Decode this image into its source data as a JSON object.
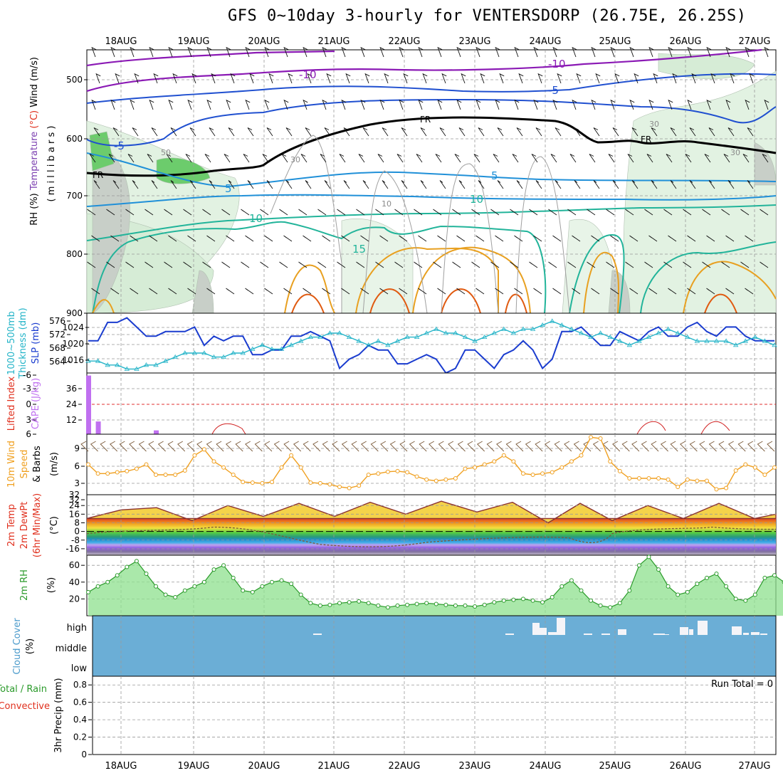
{
  "title": "GFS 0~10day 3-hourly for VENTERSDORP (26.75E, 26.25S)",
  "dates": [
    "18AUG",
    "19AUG",
    "20AUG",
    "21AUG",
    "22AUG",
    "23AUG",
    "24AUG",
    "25AUG",
    "26AUG",
    "27AUG"
  ],
  "panels": {
    "upper_air": {
      "label_parts": [
        {
          "text": "RH (%)",
          "color": "#000000"
        },
        {
          "text": "Temperature",
          "color": "#7b3fb0"
        },
        {
          "text": "(°C)",
          "color": "#e0301e"
        },
        {
          "text": "Wind (m/s)",
          "color": "#000000"
        }
      ],
      "sub_label": "( m i l l i b a r s )",
      "pressure_ticks": [
        "500",
        "600",
        "700",
        "800",
        "900"
      ],
      "contour_labels": [
        {
          "text": "-10",
          "color": "#8b1ab5"
        },
        {
          "text": "-10",
          "color": "#8b1ab5"
        },
        {
          "text": "-5",
          "color": "#2050d0"
        },
        {
          "text": "-5",
          "color": "#2050d0"
        },
        {
          "text": "FR",
          "color": "#000000"
        },
        {
          "text": "FR",
          "color": "#000000"
        },
        {
          "text": "FR",
          "color": "#000000"
        },
        {
          "text": "5",
          "color": "#2090d8"
        },
        {
          "text": "5",
          "color": "#2090d8"
        },
        {
          "text": "10",
          "color": "#22b49a"
        },
        {
          "text": "10",
          "color": "#22b49a"
        },
        {
          "text": "15",
          "color": "#22b49a"
        }
      ],
      "rh_labels": [
        "30",
        "50",
        "10",
        "30",
        "30"
      ]
    },
    "thickness": {
      "label_left": "1000~500mb",
      "label_left2": "Thickness (dm)",
      "label_right": "SLP (mb)",
      "left_ticks": [
        "576",
        "572",
        "568",
        "564"
      ],
      "right_ticks": [
        "1024",
        "1020",
        "1016"
      ]
    },
    "cape": {
      "label1": "Lifted Index",
      "label2": "CAPE (J/kg)",
      "li_ticks": [
        "-6",
        "-3",
        "0",
        "3",
        "6"
      ],
      "cape_ticks": [
        "36",
        "24",
        "12"
      ]
    },
    "wind10m": {
      "label1": "10m Wind",
      "label2": "Speed",
      "label3": "& Barbs",
      "unit": "(m/s)",
      "ticks": [
        "9",
        "6",
        "3"
      ]
    },
    "temp2m": {
      "label1": "2m Temp",
      "label2": "2m DewPt",
      "label3": "(6hr Min/Max)",
      "unit": "(°C)",
      "ticks": [
        "32",
        "24",
        "16",
        "8",
        "0",
        "-8",
        "-16"
      ]
    },
    "rh2m": {
      "label": "2m RH",
      "unit": "(%)",
      "ticks": [
        "60",
        "40",
        "20"
      ]
    },
    "cloud": {
      "label": "Cloud Cover",
      "unit": "(%)",
      "levels": [
        "high",
        "middle",
        "low"
      ]
    },
    "precip": {
      "label_total": "Total / Rain",
      "label_conv": "Convective",
      "label_unit": "3hr Precip (mm)",
      "ticks": [
        "0.8",
        "0.6",
        "0.4",
        "0.2",
        "0"
      ],
      "run_total": "Run Total = 0"
    }
  },
  "colors": {
    "slp": "#1a3ccf",
    "thickness": "#24b4c8",
    "wind_speed": "#f0a020",
    "rh_line": "#2a9a2a",
    "rh_fill": "#8ee08e",
    "cloud_bg": "#6baed6",
    "cape_bar": "#c070f0",
    "li_line": "#d02020"
  },
  "chart_data": [
    {
      "type": "line",
      "title": "SLP (mb)",
      "series": [
        {
          "name": "SLP (mb)",
          "values": [
            1020,
            1020,
            1024,
            1024,
            1025,
            1023,
            1021,
            1021,
            1022,
            1022,
            1022,
            1023,
            1019,
            1021,
            1020,
            1021,
            1021,
            1017,
            1017,
            1018,
            1018,
            1021,
            1021,
            1022,
            1021,
            1020,
            1014,
            1016,
            1017,
            1019,
            1018,
            1018,
            1015,
            1015,
            1016,
            1017,
            1016,
            1013,
            1014,
            1018,
            1018,
            1016,
            1014,
            1017,
            1018,
            1020,
            1018,
            1014,
            1016,
            1022,
            1022,
            1023,
            1021,
            1019,
            1019,
            1022,
            1021,
            1020,
            1022,
            1023,
            1021,
            1021,
            1023,
            1024,
            1022,
            1021,
            1023,
            1023,
            1021,
            1020,
            1020,
            1020
          ]
        }
      ],
      "ylim": [
        1013,
        1026
      ]
    },
    {
      "type": "line",
      "title": "1000~500mb Thickness (dm)",
      "series": [
        {
          "name": "Thickness",
          "values": [
            565,
            565,
            564,
            564,
            563,
            563,
            564,
            564,
            565,
            566,
            567,
            567,
            567,
            566,
            566,
            567,
            567,
            568,
            569,
            568,
            568,
            569,
            570,
            571,
            571,
            572,
            572,
            571,
            570,
            569,
            570,
            569,
            570,
            571,
            571,
            572,
            573,
            572,
            572,
            571,
            570,
            571,
            572,
            573,
            572,
            573,
            573,
            574,
            575,
            574,
            573,
            572,
            571,
            572,
            571,
            570,
            569,
            570,
            571,
            572,
            573,
            572,
            571,
            570,
            570,
            570,
            570,
            569,
            570,
            571,
            570,
            569
          ]
        }
      ],
      "ylim": [
        562,
        577
      ]
    },
    {
      "type": "line",
      "title": "10m Wind Speed (m/s)",
      "series": [
        {
          "name": "Speed",
          "values": [
            6.5,
            5,
            5,
            5.2,
            5.4,
            5.8,
            6.5,
            4.8,
            4.8,
            4.8,
            5.5,
            8,
            9,
            7,
            6,
            4.8,
            3.6,
            3.5,
            3.4,
            3.6,
            6,
            8,
            6,
            3.5,
            3.4,
            3.2,
            2.8,
            2.6,
            3,
            4.8,
            5,
            5.3,
            5.4,
            5.2,
            4.5,
            4,
            3.8,
            4,
            4.2,
            5.8,
            6,
            6.5,
            7,
            8,
            7,
            5,
            4.8,
            5,
            5.2,
            6,
            7,
            8,
            11,
            10.8,
            7,
            5.4,
            4.2,
            4.2,
            4.2,
            4.2,
            4.0,
            2.8,
            4.0,
            3.8,
            3.8,
            2.4,
            2.6,
            5.5,
            6.5,
            6,
            4.8,
            6
          ]
        }
      ],
      "ylim": [
        1.5,
        11.5
      ]
    },
    {
      "type": "area",
      "title": "2m RH (%)",
      "series": [
        {
          "name": "2m RH",
          "values": [
            28,
            35,
            40,
            48,
            58,
            65,
            50,
            35,
            25,
            22,
            30,
            35,
            40,
            55,
            60,
            45,
            30,
            28,
            35,
            40,
            42,
            38,
            25,
            15,
            12,
            13,
            15,
            16,
            17,
            15,
            12,
            10,
            12,
            13,
            14,
            15,
            14,
            13,
            12,
            12,
            11,
            13,
            16,
            18,
            19,
            20,
            18,
            16,
            22,
            35,
            42,
            30,
            18,
            12,
            10,
            15,
            30,
            60,
            70,
            55,
            35,
            25,
            28,
            38,
            45,
            50,
            35,
            20,
            18,
            25,
            45,
            48,
            40
          ]
        }
      ],
      "ylim": [
        0,
        70
      ]
    },
    {
      "type": "bar",
      "title": "CAPE (J/kg)",
      "series": [
        {
          "name": "CAPE",
          "values": [
            46,
            10,
            0,
            0,
            0,
            0,
            0,
            3,
            0,
            0,
            0,
            0,
            0,
            0,
            0,
            0,
            0,
            0,
            0,
            0,
            0,
            0,
            0,
            0,
            0,
            0,
            0,
            0,
            0,
            0,
            0,
            0,
            0,
            0,
            0,
            0,
            0,
            0,
            0,
            0,
            0,
            0,
            0,
            0,
            0,
            0,
            0,
            0,
            0,
            0,
            0,
            0,
            0,
            0,
            0,
            0,
            0,
            0,
            0,
            0,
            0,
            0,
            0,
            0,
            0,
            0,
            0,
            0,
            0,
            0,
            0,
            0
          ]
        }
      ],
      "ylim": [
        0,
        48
      ]
    }
  ]
}
